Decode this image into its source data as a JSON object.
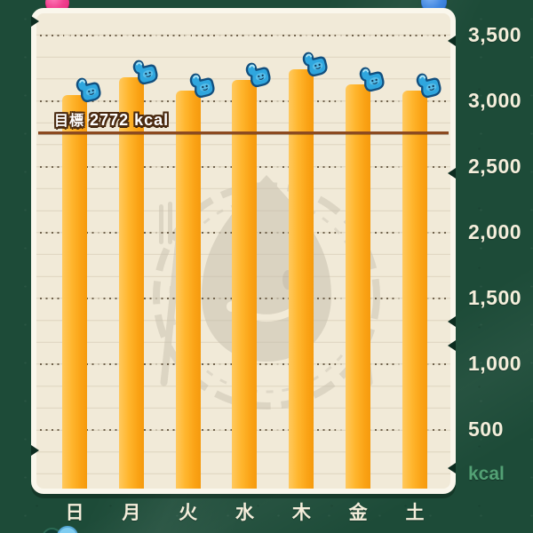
{
  "screen": {
    "name": "weekly-calorie-chart"
  },
  "header": {
    "left_button_color": "#f1418f",
    "right_button_color": "#3f86e0"
  },
  "chart_data": {
    "type": "bar",
    "title": "",
    "categories": [
      "日",
      "月",
      "火",
      "水",
      "木",
      "金",
      "土"
    ],
    "values": [
      3050,
      3180,
      3080,
      3160,
      3240,
      3130,
      3080
    ],
    "target": {
      "label": "目標",
      "value": 2772,
      "unit": "kcal"
    },
    "yticks": [
      {
        "value": 3500,
        "label": "3,500"
      },
      {
        "value": 3000,
        "label": "3,000"
      },
      {
        "value": 2500,
        "label": "2,500"
      },
      {
        "value": 2000,
        "label": "2,000"
      },
      {
        "value": 1500,
        "label": "1,500"
      },
      {
        "value": 1000,
        "label": "1,000"
      },
      {
        "value": 500,
        "label": "500"
      }
    ],
    "unit_label": "kcal",
    "ylim": [
      0,
      3700
    ],
    "grid": "dotted horizontal lines at 500 kcal steps",
    "legend_position": "none",
    "marker_icon": "thumbs-up-glove",
    "values_note": "bar heights estimated from gridlines; no data labels shown"
  },
  "colors": {
    "background": "#1d4b38",
    "paper": "#f1ead8",
    "paper_rim": "#faf7ec",
    "bar": "#ffad21",
    "target_line": "#8c4a20",
    "ytick_text": "#f4eedb",
    "unit_text": "#53a175",
    "day_text": "#f4eedb",
    "thumb_icon": "#2fa6de"
  }
}
